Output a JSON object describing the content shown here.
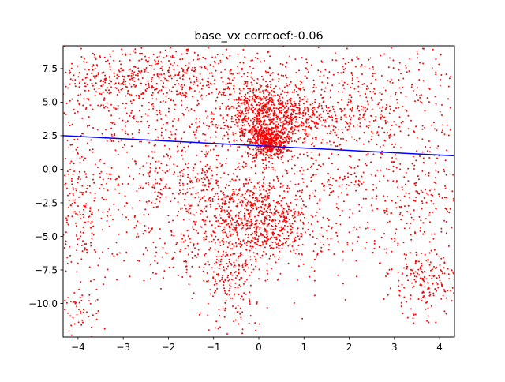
{
  "chart_data": {
    "type": "scatter",
    "title": "base_vx corrcoef:-0.06",
    "xlabel": "",
    "ylabel": "",
    "xlim": [
      -4.33,
      4.33
    ],
    "ylim": [
      -12.5,
      9.2
    ],
    "grid": false,
    "x_ticks": [
      -4,
      -3,
      -2,
      -1,
      0,
      1,
      2,
      3,
      4
    ],
    "x_tick_labels": [
      "−4",
      "−3",
      "−2",
      "−1",
      "0",
      "1",
      "2",
      "3",
      "4"
    ],
    "y_ticks": [
      -10.0,
      -7.5,
      -5.0,
      -2.5,
      0.0,
      2.5,
      5.0,
      7.5
    ],
    "y_tick_labels": [
      "−10.0",
      "−7.5",
      "−5.0",
      "−2.5",
      "0.0",
      "2.5",
      "5.0",
      "7.5"
    ],
    "point_color": "#ff0000",
    "line_color": "#0000ff",
    "fit_line": {
      "x": [
        -4.33,
        4.33
      ],
      "y": [
        2.5,
        1.0
      ]
    },
    "clusters": [
      {
        "cx": 0.1,
        "cy": 4.2,
        "sx": 0.55,
        "sy": 1.2,
        "n": 650
      },
      {
        "cx": 0.2,
        "cy": 2.0,
        "sx": 0.2,
        "sy": 0.6,
        "n": 450
      },
      {
        "cx": 1.0,
        "cy": 3.5,
        "sx": 0.9,
        "sy": 1.0,
        "n": 350
      },
      {
        "cx": -2.2,
        "cy": 6.8,
        "sx": 1.1,
        "sy": 1.2,
        "n": 350
      },
      {
        "cx": -3.3,
        "cy": 6.6,
        "sx": 0.6,
        "sy": 1.3,
        "n": 150
      },
      {
        "cx": -2.2,
        "cy": 3.4,
        "sx": 1.0,
        "sy": 1.1,
        "n": 150
      },
      {
        "cx": 0.1,
        "cy": -4.0,
        "sx": 0.5,
        "sy": 1.4,
        "n": 450
      },
      {
        "cx": -0.8,
        "cy": -3.0,
        "sx": 0.6,
        "sy": 1.8,
        "n": 250
      },
      {
        "cx": -0.6,
        "cy": -9.0,
        "sx": 0.35,
        "sy": 2.0,
        "n": 180
      },
      {
        "cx": -2.8,
        "cy": -1.5,
        "sx": 1.4,
        "sy": 2.8,
        "n": 300
      },
      {
        "cx": -4.0,
        "cy": -3.0,
        "sx": 0.25,
        "sy": 3.5,
        "n": 160
      },
      {
        "cx": -4.1,
        "cy": -10.5,
        "sx": 0.3,
        "sy": 1.2,
        "n": 60
      },
      {
        "cx": 2.8,
        "cy": 5.0,
        "sx": 1.2,
        "sy": 1.8,
        "n": 320
      },
      {
        "cx": 3.6,
        "cy": -2.5,
        "sx": 0.6,
        "sy": 3.0,
        "n": 200
      },
      {
        "cx": 3.6,
        "cy": -8.6,
        "sx": 0.4,
        "sy": 1.2,
        "n": 170
      },
      {
        "cx": 1.4,
        "cy": -4.5,
        "sx": 1.3,
        "sy": 2.0,
        "n": 200
      },
      {
        "cx": 1.5,
        "cy": -0.6,
        "sx": 1.7,
        "sy": 1.1,
        "n": 220
      },
      {
        "cx": -1.3,
        "cy": -0.2,
        "sx": 1.2,
        "sy": 1.2,
        "n": 150
      },
      {
        "cx": -1.3,
        "cy": -6.5,
        "sx": 1.0,
        "sy": 1.2,
        "n": 120
      },
      {
        "cx": 0.0,
        "cy": 7.5,
        "sx": 2.0,
        "sy": 1.0,
        "n": 160
      }
    ]
  }
}
